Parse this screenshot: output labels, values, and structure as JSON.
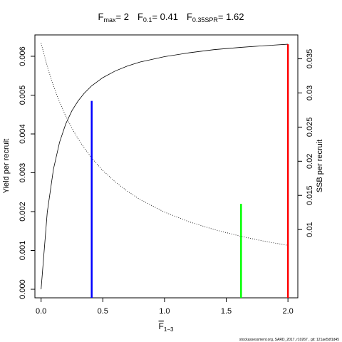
{
  "chart_data": {
    "type": "line",
    "title": {
      "fmax_label": "F",
      "fmax_sub": "max",
      "fmax_value": "= 2",
      "f01_label": "F",
      "f01_sub": "0.1",
      "f01_value": "= 0.41",
      "fspr_label": "F",
      "fspr_sub": "0.35SPR",
      "fspr_value": "= 1.62"
    },
    "xlabel": {
      "text": "F",
      "sub": "1−3"
    },
    "ylabel_left": "Yield per recruit",
    "ylabel_right": "SSB per recruit",
    "xlim": [
      -0.05,
      2.08
    ],
    "ylim_left": [
      -0.00022,
      0.00655
    ],
    "ylim_right": [
      0,
      0.0385
    ],
    "x_ticks": [
      0,
      0.5,
      1,
      1.5,
      2
    ],
    "x_tick_labels": [
      "0.0",
      "0.5",
      "1.0",
      "1.5",
      "2.0"
    ],
    "y_left_ticks": [
      0,
      0.001,
      0.002,
      0.003,
      0.004,
      0.005,
      0.006
    ],
    "y_left_tick_labels": [
      "0.000",
      "0.001",
      "0.002",
      "0.003",
      "0.004",
      "0.005",
      "0.006"
    ],
    "y_right_ticks": [
      0.01,
      0.015,
      0.02,
      0.025,
      0.03,
      0.035
    ],
    "y_right_tick_labels": [
      "0.01",
      "0.015",
      "0.02",
      "0.025",
      "0.03",
      "0.035"
    ],
    "series": [
      {
        "axis": "left",
        "style": "solid",
        "x": [
          0,
          0.05,
          0.1,
          0.15,
          0.2,
          0.25,
          0.3,
          0.35,
          0.41,
          0.5,
          0.6,
          0.7,
          0.8,
          1.0,
          1.2,
          1.4,
          1.62,
          1.8,
          2.0
        ],
        "y": [
          0,
          0.00198,
          0.00309,
          0.00379,
          0.00426,
          0.0046,
          0.00485,
          0.00505,
          0.00524,
          0.00545,
          0.00562,
          0.00575,
          0.00585,
          0.00599,
          0.00609,
          0.00617,
          0.00623,
          0.00627,
          0.00631
        ]
      },
      {
        "axis": "right",
        "style": "dotted",
        "x": [
          0,
          0.05,
          0.1,
          0.15,
          0.2,
          0.25,
          0.3,
          0.35,
          0.41,
          0.5,
          0.6,
          0.7,
          0.8,
          1.0,
          1.2,
          1.4,
          1.62,
          1.8,
          2.0
        ],
        "y": [
          0.0373,
          0.03389,
          0.03105,
          0.02866,
          0.02661,
          0.02484,
          0.02329,
          0.02193,
          0.02048,
          0.01864,
          0.01698,
          0.0156,
          0.01442,
          0.01255,
          0.01113,
          0.01001,
          0.009,
          0.00832,
          0.00768
        ]
      }
    ],
    "reference_lines": [
      {
        "x": 0.41,
        "y_top": 0.00485,
        "color": "#0000ff"
      },
      {
        "x": 1.62,
        "y_top": 0.0022,
        "color": "#00ff00"
      },
      {
        "x": 2.0,
        "y_top": 0.00631,
        "color": "#ff0000"
      }
    ],
    "footer": "stockassessment.org, SARD_2017, r10267 , git: 121ae5df1d45"
  }
}
